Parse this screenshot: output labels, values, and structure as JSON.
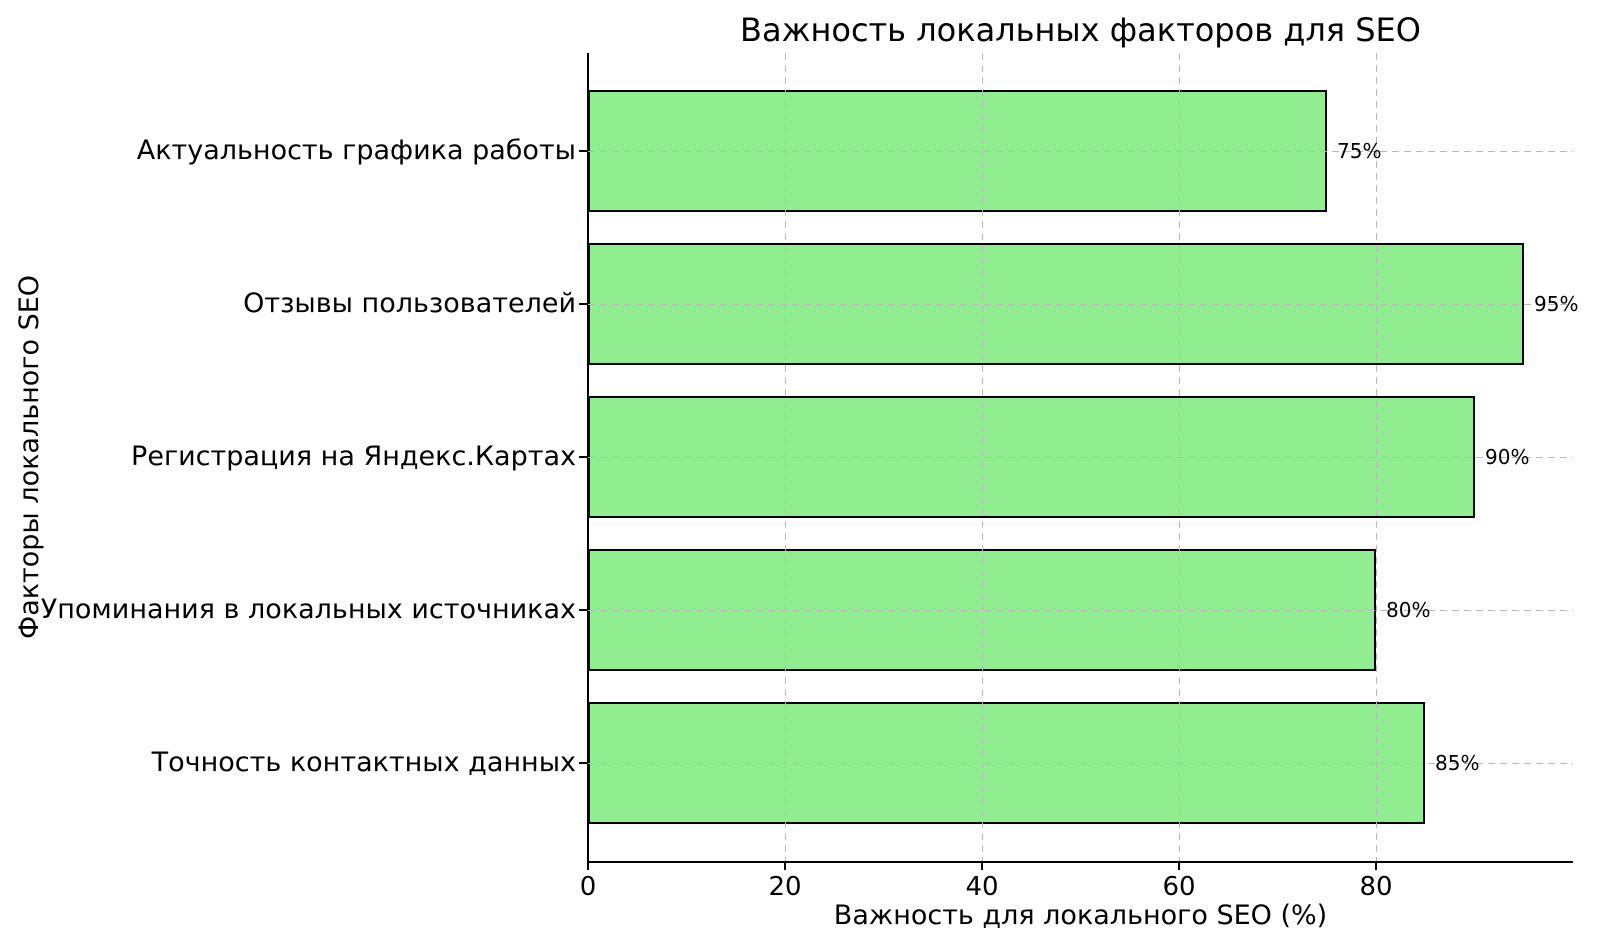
{
  "chart_data": {
    "type": "bar",
    "orientation": "horizontal",
    "title": "Важность локальных факторов для SEO",
    "xlabel": "Важность для локального SEO (%)",
    "ylabel": "Факторы локального SEO",
    "categories": [
      "Актуальность графика работы",
      "Отзывы пользователей",
      "Регистрация на Яндекс.Картах",
      "Упоминания в локальных источниках",
      "Точность контактных данных"
    ],
    "categories_order": "top-to-bottom",
    "values": [
      75,
      95,
      90,
      80,
      85
    ],
    "value_labels": [
      "75%",
      "95%",
      "90%",
      "80%",
      "85%"
    ],
    "xticks": [
      0,
      20,
      40,
      60,
      80
    ],
    "xtick_labels": [
      "0",
      "20",
      "40",
      "60",
      "80"
    ],
    "xlim": [
      0,
      100
    ],
    "grid": true,
    "grid_style": "dashed",
    "grid_color": "#b8b8b8",
    "bar_color": "#90EE90",
    "bar_edge_color": "#000000",
    "background_color": "#ffffff",
    "legend": null
  }
}
